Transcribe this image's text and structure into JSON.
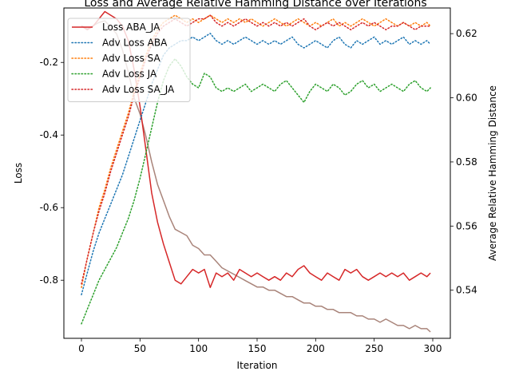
{
  "chart_data": {
    "type": "line",
    "title": "Loss and Average Relative Hamming Distance over Iterations",
    "xlabel": "Iteration",
    "ylabel": "Loss",
    "y2label": "Average Relative Hamming Distance",
    "y2label_color": "#8c564b",
    "xlim": [
      -15,
      315
    ],
    "ylim": [
      -0.96,
      -0.05
    ],
    "y2lim": [
      0.525,
      0.628
    ],
    "xticks": [
      0,
      50,
      100,
      150,
      200,
      250,
      300
    ],
    "xtick_labels": [
      "0",
      "50",
      "100",
      "150",
      "200",
      "250",
      "300"
    ],
    "yticks": [
      -0.8,
      -0.6,
      -0.4,
      -0.2
    ],
    "ytick_labels": [
      "-0.8",
      "-0.6",
      "-0.4",
      "-0.2"
    ],
    "y2ticks": [
      0.54,
      0.56,
      0.58,
      0.6,
      0.62
    ],
    "y2tick_labels": [
      "0.54",
      "0.56",
      "0.58",
      "0.60",
      "0.62"
    ],
    "legend_placement": "upper-left",
    "grid": false,
    "series": [
      {
        "name": "Loss ABA_JA",
        "axis": "left",
        "style": "solid",
        "color": "#d62728",
        "x": [
          0,
          5,
          10,
          15,
          20,
          25,
          30,
          35,
          40,
          45,
          50,
          55,
          60,
          65,
          70,
          75,
          80,
          85,
          90,
          95,
          100,
          105,
          110,
          115,
          120,
          125,
          130,
          135,
          140,
          145,
          150,
          155,
          160,
          165,
          170,
          175,
          180,
          185,
          190,
          195,
          200,
          205,
          210,
          215,
          220,
          225,
          230,
          235,
          240,
          245,
          250,
          255,
          260,
          265,
          270,
          275,
          280,
          285,
          290,
          295,
          298
        ],
        "y": [
          -0.1,
          -0.11,
          -0.1,
          -0.08,
          -0.06,
          -0.07,
          -0.08,
          -0.1,
          -0.14,
          -0.22,
          -0.32,
          -0.44,
          -0.56,
          -0.64,
          -0.7,
          -0.75,
          -0.8,
          -0.81,
          -0.79,
          -0.77,
          -0.78,
          -0.77,
          -0.82,
          -0.78,
          -0.79,
          -0.78,
          -0.8,
          -0.77,
          -0.78,
          -0.79,
          -0.78,
          -0.79,
          -0.8,
          -0.79,
          -0.8,
          -0.78,
          -0.79,
          -0.77,
          -0.76,
          -0.78,
          -0.79,
          -0.8,
          -0.78,
          -0.79,
          -0.8,
          -0.77,
          -0.78,
          -0.77,
          -0.79,
          -0.8,
          -0.79,
          -0.78,
          -0.79,
          -0.78,
          -0.79,
          -0.78,
          -0.8,
          -0.79,
          -0.78,
          -0.79,
          -0.78
        ]
      },
      {
        "name": "Adv Loss ABA",
        "axis": "left",
        "style": "dotted",
        "color": "#1f77b4",
        "x": [
          0,
          5,
          10,
          15,
          20,
          25,
          30,
          35,
          40,
          45,
          50,
          55,
          60,
          65,
          70,
          75,
          80,
          85,
          90,
          95,
          100,
          105,
          110,
          115,
          120,
          125,
          130,
          135,
          140,
          145,
          150,
          155,
          160,
          165,
          170,
          175,
          180,
          185,
          190,
          195,
          200,
          205,
          210,
          215,
          220,
          225,
          230,
          235,
          240,
          245,
          250,
          255,
          260,
          265,
          270,
          275,
          280,
          285,
          290,
          295,
          298
        ],
        "y": [
          -0.84,
          -0.78,
          -0.72,
          -0.67,
          -0.63,
          -0.59,
          -0.55,
          -0.51,
          -0.46,
          -0.41,
          -0.36,
          -0.31,
          -0.26,
          -0.22,
          -0.18,
          -0.16,
          -0.15,
          -0.14,
          -0.14,
          -0.13,
          -0.14,
          -0.13,
          -0.12,
          -0.14,
          -0.15,
          -0.14,
          -0.15,
          -0.14,
          -0.13,
          -0.14,
          -0.15,
          -0.14,
          -0.15,
          -0.14,
          -0.15,
          -0.14,
          -0.13,
          -0.15,
          -0.16,
          -0.15,
          -0.14,
          -0.15,
          -0.16,
          -0.14,
          -0.13,
          -0.15,
          -0.16,
          -0.14,
          -0.15,
          -0.14,
          -0.13,
          -0.15,
          -0.14,
          -0.15,
          -0.14,
          -0.13,
          -0.15,
          -0.14,
          -0.15,
          -0.14,
          -0.15
        ]
      },
      {
        "name": "Adv Loss SA",
        "axis": "left",
        "style": "dotted",
        "color": "#ff7f0e",
        "x": [
          0,
          5,
          10,
          15,
          20,
          25,
          30,
          35,
          40,
          45,
          50,
          55,
          60,
          65,
          70,
          75,
          80,
          85,
          90,
          95,
          100,
          105,
          110,
          115,
          120,
          125,
          130,
          135,
          140,
          145,
          150,
          155,
          160,
          165,
          170,
          175,
          180,
          185,
          190,
          195,
          200,
          205,
          210,
          215,
          220,
          225,
          230,
          235,
          240,
          245,
          250,
          255,
          260,
          265,
          270,
          275,
          280,
          285,
          290,
          295,
          298
        ],
        "y": [
          -0.82,
          -0.74,
          -0.67,
          -0.6,
          -0.55,
          -0.49,
          -0.44,
          -0.39,
          -0.34,
          -0.28,
          -0.23,
          -0.18,
          -0.14,
          -0.11,
          -0.09,
          -0.08,
          -0.07,
          -0.08,
          -0.09,
          -0.08,
          -0.09,
          -0.08,
          -0.07,
          -0.08,
          -0.09,
          -0.08,
          -0.09,
          -0.08,
          -0.09,
          -0.08,
          -0.09,
          -0.1,
          -0.09,
          -0.08,
          -0.09,
          -0.1,
          -0.09,
          -0.08,
          -0.09,
          -0.1,
          -0.09,
          -0.1,
          -0.09,
          -0.08,
          -0.1,
          -0.09,
          -0.1,
          -0.09,
          -0.08,
          -0.09,
          -0.1,
          -0.09,
          -0.08,
          -0.09,
          -0.1,
          -0.09,
          -0.1,
          -0.09,
          -0.1,
          -0.09,
          -0.1
        ]
      },
      {
        "name": "Adv Loss JA",
        "axis": "left",
        "style": "dotted",
        "color": "#2ca02c",
        "x": [
          0,
          5,
          10,
          15,
          20,
          25,
          30,
          35,
          40,
          45,
          50,
          55,
          60,
          65,
          70,
          75,
          80,
          85,
          90,
          95,
          100,
          105,
          110,
          115,
          120,
          125,
          130,
          135,
          140,
          145,
          150,
          155,
          160,
          165,
          170,
          175,
          180,
          185,
          190,
          195,
          200,
          205,
          210,
          215,
          220,
          225,
          230,
          235,
          240,
          245,
          250,
          255,
          260,
          265,
          270,
          275,
          280,
          285,
          290,
          295,
          298
        ],
        "y": [
          -0.92,
          -0.88,
          -0.84,
          -0.8,
          -0.77,
          -0.74,
          -0.71,
          -0.67,
          -0.63,
          -0.58,
          -0.52,
          -0.45,
          -0.38,
          -0.31,
          -0.25,
          -0.21,
          -0.19,
          -0.21,
          -0.24,
          -0.26,
          -0.27,
          -0.23,
          -0.24,
          -0.27,
          -0.28,
          -0.27,
          -0.28,
          -0.27,
          -0.26,
          -0.28,
          -0.27,
          -0.26,
          -0.27,
          -0.28,
          -0.26,
          -0.25,
          -0.27,
          -0.29,
          -0.31,
          -0.28,
          -0.26,
          -0.27,
          -0.28,
          -0.26,
          -0.27,
          -0.29,
          -0.28,
          -0.26,
          -0.25,
          -0.27,
          -0.26,
          -0.28,
          -0.27,
          -0.26,
          -0.27,
          -0.28,
          -0.26,
          -0.25,
          -0.27,
          -0.28,
          -0.27
        ]
      },
      {
        "name": "Adv Loss SA_JA",
        "axis": "left",
        "style": "dotted",
        "color": "#d62728",
        "x": [
          0,
          5,
          10,
          15,
          20,
          25,
          30,
          35,
          40,
          45,
          50,
          55,
          60,
          65,
          70,
          75,
          80,
          85,
          90,
          95,
          100,
          105,
          110,
          115,
          120,
          125,
          130,
          135,
          140,
          145,
          150,
          155,
          160,
          165,
          170,
          175,
          180,
          185,
          190,
          195,
          200,
          205,
          210,
          215,
          220,
          225,
          230,
          235,
          240,
          245,
          250,
          255,
          260,
          265,
          270,
          275,
          280,
          285,
          290,
          295,
          298
        ],
        "y": [
          -0.81,
          -0.74,
          -0.67,
          -0.61,
          -0.56,
          -0.5,
          -0.45,
          -0.4,
          -0.35,
          -0.29,
          -0.24,
          -0.19,
          -0.15,
          -0.12,
          -0.1,
          -0.09,
          -0.08,
          -0.09,
          -0.1,
          -0.09,
          -0.08,
          -0.08,
          -0.07,
          -0.09,
          -0.1,
          -0.09,
          -0.1,
          -0.09,
          -0.08,
          -0.09,
          -0.1,
          -0.09,
          -0.1,
          -0.09,
          -0.1,
          -0.09,
          -0.1,
          -0.09,
          -0.08,
          -0.1,
          -0.11,
          -0.1,
          -0.09,
          -0.1,
          -0.09,
          -0.1,
          -0.11,
          -0.1,
          -0.09,
          -0.1,
          -0.09,
          -0.1,
          -0.11,
          -0.1,
          -0.1,
          -0.09,
          -0.1,
          -0.11,
          -0.1,
          -0.1,
          -0.1
        ]
      },
      {
        "name": "",
        "axis": "right",
        "style": "solid",
        "color": "#a9847a",
        "x": [
          0,
          5,
          10,
          15,
          20,
          25,
          30,
          35,
          40,
          45,
          50,
          55,
          60,
          65,
          70,
          75,
          80,
          85,
          90,
          95,
          100,
          105,
          110,
          115,
          120,
          125,
          130,
          135,
          140,
          145,
          150,
          155,
          160,
          165,
          170,
          175,
          180,
          185,
          190,
          195,
          200,
          205,
          210,
          215,
          220,
          225,
          230,
          235,
          240,
          245,
          250,
          255,
          260,
          265,
          270,
          275,
          280,
          285,
          290,
          295,
          298
        ],
        "y": [
          0.6225,
          0.6215,
          0.6225,
          0.6235,
          0.624,
          0.622,
          0.62,
          0.615,
          0.608,
          0.6,
          0.595,
          0.588,
          0.58,
          0.573,
          0.568,
          0.563,
          0.559,
          0.558,
          0.557,
          0.554,
          0.553,
          0.551,
          0.551,
          0.549,
          0.547,
          0.546,
          0.545,
          0.544,
          0.543,
          0.542,
          0.541,
          0.541,
          0.54,
          0.54,
          0.539,
          0.538,
          0.538,
          0.537,
          0.536,
          0.536,
          0.535,
          0.535,
          0.534,
          0.534,
          0.533,
          0.533,
          0.533,
          0.532,
          0.532,
          0.531,
          0.531,
          0.53,
          0.531,
          0.53,
          0.529,
          0.529,
          0.528,
          0.529,
          0.528,
          0.528,
          0.527
        ]
      }
    ]
  }
}
